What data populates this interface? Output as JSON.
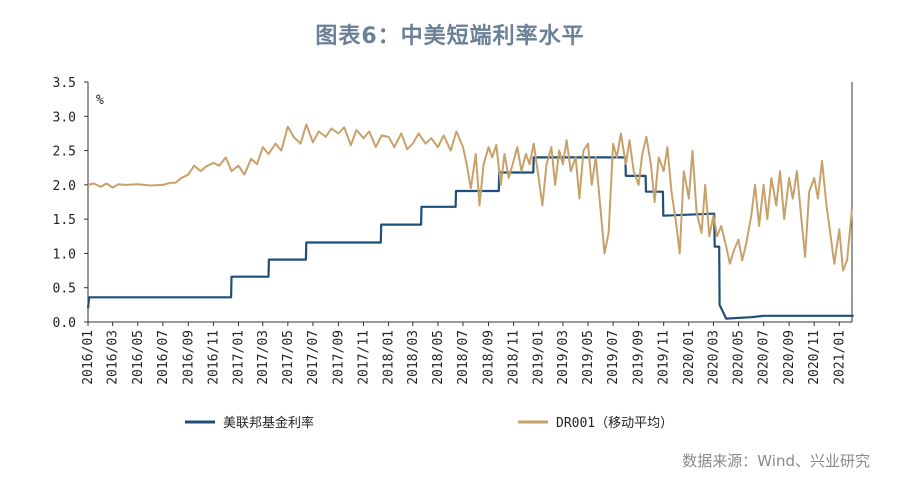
{
  "title": "图表6：中美短端利率水平",
  "source": "数据来源：Wind、兴业研究",
  "colors": {
    "fed": "#1f4e79",
    "dr001": "#c8a16a",
    "axis": "#333333"
  },
  "chart_data": {
    "type": "line",
    "unit_label": "%",
    "ylim": [
      0,
      3.5
    ],
    "yticks": [
      "0.0",
      "0.5",
      "1.0",
      "1.5",
      "2.0",
      "2.5",
      "3.0",
      "3.5"
    ],
    "xlim": [
      "2016-01",
      "2021-02"
    ],
    "xticks": [
      "2016/01",
      "2016/03",
      "2016/05",
      "2016/07",
      "2016/09",
      "2016/11",
      "2017/01",
      "2017/03",
      "2017/05",
      "2017/07",
      "2017/09",
      "2017/11",
      "2018/01",
      "2018/03",
      "2018/05",
      "2018/07",
      "2018/09",
      "2018/11",
      "2019/01",
      "2019/03",
      "2019/05",
      "2019/07",
      "2019/09",
      "2019/11",
      "2020/01",
      "2020/03",
      "2020/05",
      "2020/07",
      "2020/09",
      "2020/11",
      "2021/01"
    ],
    "legend_position": "bottom",
    "series": [
      {
        "name": "美联邦基金利率",
        "color": "#1f4e79",
        "points": [
          [
            "2016-01-01",
            0.2
          ],
          [
            "2016-01-04",
            0.36
          ],
          [
            "2016-12-14",
            0.36
          ],
          [
            "2016-12-15",
            0.66
          ],
          [
            "2017-03-15",
            0.66
          ],
          [
            "2017-03-16",
            0.91
          ],
          [
            "2017-06-14",
            0.91
          ],
          [
            "2017-06-15",
            1.16
          ],
          [
            "2017-12-13",
            1.16
          ],
          [
            "2017-12-14",
            1.42
          ],
          [
            "2018-03-21",
            1.42
          ],
          [
            "2018-03-22",
            1.68
          ],
          [
            "2018-06-13",
            1.68
          ],
          [
            "2018-06-14",
            1.91
          ],
          [
            "2018-09-26",
            1.91
          ],
          [
            "2018-09-27",
            2.18
          ],
          [
            "2018-12-19",
            2.18
          ],
          [
            "2018-12-20",
            2.4
          ],
          [
            "2019-07-31",
            2.4
          ],
          [
            "2019-08-01",
            2.13
          ],
          [
            "2019-09-18",
            2.13
          ],
          [
            "2019-09-19",
            1.9
          ],
          [
            "2019-10-30",
            1.9
          ],
          [
            "2019-10-31",
            1.55
          ],
          [
            "2020-02-28",
            1.58
          ],
          [
            "2020-03-03",
            1.58
          ],
          [
            "2020-03-04",
            1.1
          ],
          [
            "2020-03-15",
            1.1
          ],
          [
            "2020-03-16",
            0.25
          ],
          [
            "2020-04-01",
            0.05
          ],
          [
            "2020-06-01",
            0.07
          ],
          [
            "2020-07-01",
            0.09
          ],
          [
            "2021-02-05",
            0.09
          ]
        ]
      },
      {
        "name": "DR001（移动平均）",
        "color": "#c8a16a",
        "points": [
          [
            "2016-01-01",
            2.0
          ],
          [
            "2016-01-15",
            2.02
          ],
          [
            "2016-02-01",
            1.97
          ],
          [
            "2016-02-15",
            2.02
          ],
          [
            "2016-03-01",
            1.96
          ],
          [
            "2016-03-15",
            2.01
          ],
          [
            "2016-04-01",
            2.0
          ],
          [
            "2016-05-01",
            2.01
          ],
          [
            "2016-06-01",
            1.99
          ],
          [
            "2016-07-01",
            2.0
          ],
          [
            "2016-07-20",
            2.03
          ],
          [
            "2016-08-01",
            2.03
          ],
          [
            "2016-08-15",
            2.1
          ],
          [
            "2016-09-01",
            2.15
          ],
          [
            "2016-09-15",
            2.28
          ],
          [
            "2016-10-01",
            2.2
          ],
          [
            "2016-10-15",
            2.27
          ],
          [
            "2016-11-01",
            2.32
          ],
          [
            "2016-11-15",
            2.28
          ],
          [
            "2016-12-01",
            2.4
          ],
          [
            "2016-12-15",
            2.2
          ],
          [
            "2017-01-01",
            2.28
          ],
          [
            "2017-01-15",
            2.15
          ],
          [
            "2017-02-01",
            2.38
          ],
          [
            "2017-02-15",
            2.3
          ],
          [
            "2017-03-01",
            2.55
          ],
          [
            "2017-03-15",
            2.45
          ],
          [
            "2017-04-01",
            2.6
          ],
          [
            "2017-04-15",
            2.5
          ],
          [
            "2017-05-01",
            2.85
          ],
          [
            "2017-05-15",
            2.7
          ],
          [
            "2017-06-01",
            2.6
          ],
          [
            "2017-06-15",
            2.88
          ],
          [
            "2017-07-01",
            2.62
          ],
          [
            "2017-07-15",
            2.78
          ],
          [
            "2017-08-01",
            2.7
          ],
          [
            "2017-08-15",
            2.82
          ],
          [
            "2017-09-01",
            2.75
          ],
          [
            "2017-09-15",
            2.84
          ],
          [
            "2017-10-01",
            2.58
          ],
          [
            "2017-10-15",
            2.8
          ],
          [
            "2017-11-01",
            2.68
          ],
          [
            "2017-11-15",
            2.78
          ],
          [
            "2017-12-01",
            2.55
          ],
          [
            "2017-12-15",
            2.72
          ],
          [
            "2018-01-01",
            2.7
          ],
          [
            "2018-01-15",
            2.55
          ],
          [
            "2018-02-01",
            2.75
          ],
          [
            "2018-02-15",
            2.52
          ],
          [
            "2018-03-01",
            2.6
          ],
          [
            "2018-03-15",
            2.75
          ],
          [
            "2018-04-01",
            2.6
          ],
          [
            "2018-04-15",
            2.68
          ],
          [
            "2018-05-01",
            2.55
          ],
          [
            "2018-05-15",
            2.72
          ],
          [
            "2018-06-01",
            2.5
          ],
          [
            "2018-06-15",
            2.78
          ],
          [
            "2018-07-01",
            2.55
          ],
          [
            "2018-07-10",
            2.3
          ],
          [
            "2018-07-20",
            1.95
          ],
          [
            "2018-08-01",
            2.45
          ],
          [
            "2018-08-10",
            1.7
          ],
          [
            "2018-08-20",
            2.3
          ],
          [
            "2018-09-01",
            2.55
          ],
          [
            "2018-09-10",
            2.4
          ],
          [
            "2018-09-20",
            2.58
          ],
          [
            "2018-10-01",
            2.0
          ],
          [
            "2018-10-10",
            2.45
          ],
          [
            "2018-10-20",
            2.1
          ],
          [
            "2018-11-01",
            2.35
          ],
          [
            "2018-11-10",
            2.55
          ],
          [
            "2018-11-20",
            2.2
          ],
          [
            "2018-12-01",
            2.45
          ],
          [
            "2018-12-10",
            2.3
          ],
          [
            "2018-12-20",
            2.6
          ],
          [
            "2019-01-01",
            2.1
          ],
          [
            "2019-01-10",
            1.7
          ],
          [
            "2019-01-20",
            2.3
          ],
          [
            "2019-02-01",
            2.55
          ],
          [
            "2019-02-10",
            2.0
          ],
          [
            "2019-02-20",
            2.5
          ],
          [
            "2019-03-01",
            2.3
          ],
          [
            "2019-03-10",
            2.65
          ],
          [
            "2019-03-20",
            2.2
          ],
          [
            "2019-04-01",
            2.4
          ],
          [
            "2019-04-10",
            1.8
          ],
          [
            "2019-04-20",
            2.5
          ],
          [
            "2019-05-01",
            2.6
          ],
          [
            "2019-05-10",
            2.0
          ],
          [
            "2019-05-20",
            2.4
          ],
          [
            "2019-06-01",
            1.6
          ],
          [
            "2019-06-10",
            1.0
          ],
          [
            "2019-06-20",
            1.3
          ],
          [
            "2019-07-01",
            2.6
          ],
          [
            "2019-07-10",
            2.4
          ],
          [
            "2019-07-20",
            2.75
          ],
          [
            "2019-08-01",
            2.3
          ],
          [
            "2019-08-10",
            2.65
          ],
          [
            "2019-08-20",
            2.2
          ],
          [
            "2019-09-01",
            2.0
          ],
          [
            "2019-09-10",
            2.45
          ],
          [
            "2019-09-20",
            2.7
          ],
          [
            "2019-10-01",
            2.3
          ],
          [
            "2019-10-10",
            1.75
          ],
          [
            "2019-10-20",
            2.4
          ],
          [
            "2019-11-01",
            2.2
          ],
          [
            "2019-11-10",
            2.55
          ],
          [
            "2019-11-20",
            1.9
          ],
          [
            "2019-12-01",
            1.45
          ],
          [
            "2019-12-10",
            1.0
          ],
          [
            "2019-12-20",
            2.2
          ],
          [
            "2020-01-01",
            1.8
          ],
          [
            "2020-01-10",
            2.5
          ],
          [
            "2020-01-20",
            1.6
          ],
          [
            "2020-02-01",
            1.3
          ],
          [
            "2020-02-10",
            2.0
          ],
          [
            "2020-02-20",
            1.25
          ],
          [
            "2020-03-01",
            1.55
          ],
          [
            "2020-03-10",
            1.25
          ],
          [
            "2020-03-20",
            1.4
          ],
          [
            "2020-04-01",
            1.1
          ],
          [
            "2020-04-10",
            0.85
          ],
          [
            "2020-04-20",
            1.05
          ],
          [
            "2020-05-01",
            1.2
          ],
          [
            "2020-05-10",
            0.9
          ],
          [
            "2020-05-20",
            1.15
          ],
          [
            "2020-06-01",
            1.55
          ],
          [
            "2020-06-10",
            2.0
          ],
          [
            "2020-06-20",
            1.4
          ],
          [
            "2020-07-01",
            2.0
          ],
          [
            "2020-07-10",
            1.5
          ],
          [
            "2020-07-20",
            2.1
          ],
          [
            "2020-08-01",
            1.7
          ],
          [
            "2020-08-10",
            2.2
          ],
          [
            "2020-08-20",
            1.5
          ],
          [
            "2020-09-01",
            2.1
          ],
          [
            "2020-09-10",
            1.8
          ],
          [
            "2020-09-20",
            2.2
          ],
          [
            "2020-10-01",
            1.5
          ],
          [
            "2020-10-10",
            0.95
          ],
          [
            "2020-10-20",
            1.9
          ],
          [
            "2020-11-01",
            2.1
          ],
          [
            "2020-11-10",
            1.8
          ],
          [
            "2020-11-20",
            2.35
          ],
          [
            "2020-12-01",
            1.7
          ],
          [
            "2020-12-10",
            1.3
          ],
          [
            "2020-12-20",
            0.85
          ],
          [
            "2021-01-01",
            1.35
          ],
          [
            "2021-01-10",
            0.75
          ],
          [
            "2021-01-20",
            0.9
          ],
          [
            "2021-02-01",
            1.65
          ]
        ]
      }
    ]
  }
}
